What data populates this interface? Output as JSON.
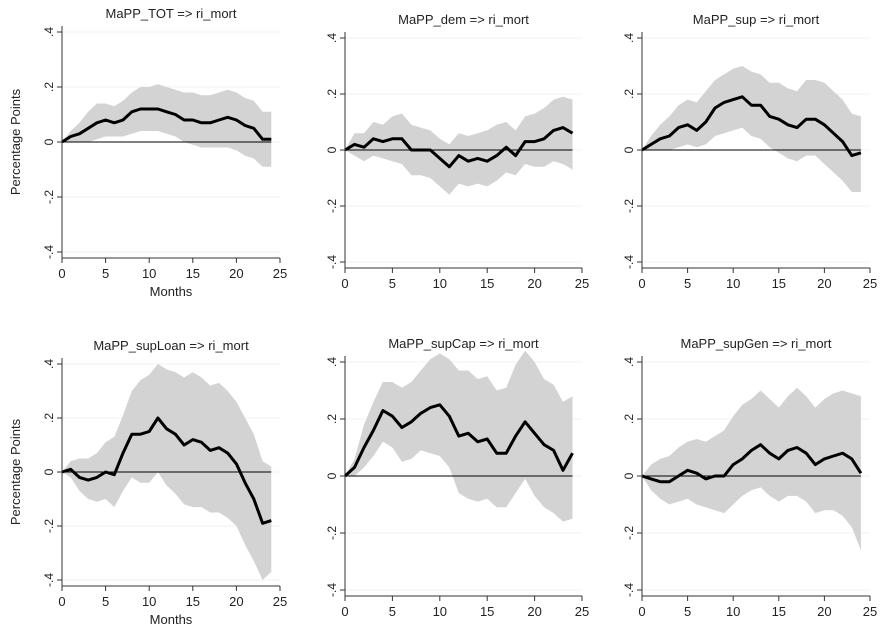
{
  "colors": {
    "line": "#000000",
    "band": "#d3d3d3",
    "zero": "#000000",
    "grid": "#eef0f5"
  },
  "chart_data": [
    {
      "type": "area",
      "title": "MaPP_TOT => ri_mort",
      "xlabel": "Months",
      "ylabel": "Percentage Points",
      "xlim": [
        0,
        25
      ],
      "ylim": [
        -0.4,
        0.4
      ],
      "xticks": [
        "0",
        "5",
        "10",
        "15",
        "20",
        "25"
      ],
      "yticks": [
        "-.4",
        "-.2",
        "0",
        ".2",
        ".4"
      ],
      "x": [
        0,
        1,
        2,
        3,
        4,
        5,
        6,
        7,
        8,
        9,
        10,
        11,
        12,
        13,
        14,
        15,
        16,
        17,
        18,
        19,
        20,
        21,
        22,
        23,
        24
      ],
      "series": [
        {
          "values": [
            0.0,
            0.02,
            0.03,
            0.05,
            0.07,
            0.08,
            0.07,
            0.08,
            0.11,
            0.12,
            0.12,
            0.12,
            0.11,
            0.1,
            0.08,
            0.08,
            0.07,
            0.07,
            0.08,
            0.09,
            0.08,
            0.06,
            0.05,
            0.01,
            0.01
          ]
        },
        {
          "values": [
            0.0,
            0.04,
            0.07,
            0.11,
            0.14,
            0.14,
            0.13,
            0.15,
            0.18,
            0.2,
            0.2,
            0.21,
            0.2,
            0.19,
            0.18,
            0.18,
            0.17,
            0.17,
            0.18,
            0.19,
            0.18,
            0.16,
            0.15,
            0.11,
            0.11
          ]
        },
        {
          "values": [
            0.0,
            0.0,
            0.0,
            0.0,
            0.01,
            0.02,
            0.02,
            0.02,
            0.03,
            0.04,
            0.04,
            0.04,
            0.03,
            0.02,
            0.0,
            -0.01,
            -0.02,
            -0.02,
            -0.02,
            -0.02,
            -0.03,
            -0.05,
            -0.06,
            -0.09,
            -0.09
          ]
        }
      ]
    },
    {
      "type": "area",
      "title": "MaPP_dem => ri_mort",
      "xlabel": "",
      "ylabel": "",
      "xlim": [
        0,
        25
      ],
      "ylim": [
        -0.4,
        0.4
      ],
      "xticks": [
        "0",
        "5",
        "10",
        "15",
        "20",
        "25"
      ],
      "yticks": [
        "-.4",
        "-.2",
        "0",
        ".2",
        ".4"
      ],
      "x": [
        0,
        1,
        2,
        3,
        4,
        5,
        6,
        7,
        8,
        9,
        10,
        11,
        12,
        13,
        14,
        15,
        16,
        17,
        18,
        19,
        20,
        21,
        22,
        23,
        24
      ],
      "series": [
        {
          "values": [
            0.0,
            0.02,
            0.01,
            0.04,
            0.03,
            0.04,
            0.04,
            0.0,
            0.0,
            0.0,
            -0.03,
            -0.06,
            -0.02,
            -0.04,
            -0.03,
            -0.04,
            -0.02,
            0.01,
            -0.02,
            0.03,
            0.03,
            0.04,
            0.07,
            0.08,
            0.06
          ]
        },
        {
          "values": [
            0.0,
            0.06,
            0.06,
            0.1,
            0.09,
            0.12,
            0.13,
            0.09,
            0.08,
            0.07,
            0.04,
            0.02,
            0.06,
            0.05,
            0.06,
            0.07,
            0.09,
            0.1,
            0.07,
            0.12,
            0.13,
            0.15,
            0.18,
            0.19,
            0.18
          ]
        },
        {
          "values": [
            0.0,
            -0.02,
            -0.04,
            -0.02,
            -0.03,
            -0.04,
            -0.05,
            -0.09,
            -0.09,
            -0.1,
            -0.13,
            -0.16,
            -0.12,
            -0.13,
            -0.12,
            -0.13,
            -0.11,
            -0.08,
            -0.09,
            -0.05,
            -0.06,
            -0.06,
            -0.04,
            -0.05,
            -0.07
          ]
        }
      ]
    },
    {
      "type": "area",
      "title": "MaPP_sup => ri_mort",
      "xlabel": "",
      "ylabel": "",
      "xlim": [
        0,
        25
      ],
      "ylim": [
        -0.4,
        0.4
      ],
      "xticks": [
        "0",
        "5",
        "10",
        "15",
        "20",
        "25"
      ],
      "yticks": [
        "-.4",
        "-.2",
        "0",
        ".2",
        ".4"
      ],
      "x": [
        0,
        1,
        2,
        3,
        4,
        5,
        6,
        7,
        8,
        9,
        10,
        11,
        12,
        13,
        14,
        15,
        16,
        17,
        18,
        19,
        20,
        21,
        22,
        23,
        24
      ],
      "series": [
        {
          "values": [
            0.0,
            0.02,
            0.04,
            0.05,
            0.08,
            0.09,
            0.07,
            0.1,
            0.15,
            0.17,
            0.18,
            0.19,
            0.16,
            0.16,
            0.12,
            0.11,
            0.09,
            0.08,
            0.11,
            0.11,
            0.09,
            0.06,
            0.03,
            -0.02,
            -0.01
          ]
        },
        {
          "values": [
            0.0,
            0.05,
            0.09,
            0.12,
            0.16,
            0.18,
            0.17,
            0.21,
            0.25,
            0.27,
            0.29,
            0.3,
            0.28,
            0.27,
            0.24,
            0.24,
            0.22,
            0.21,
            0.25,
            0.25,
            0.24,
            0.21,
            0.18,
            0.13,
            0.12
          ]
        },
        {
          "values": [
            0.0,
            0.0,
            0.0,
            0.0,
            0.01,
            0.02,
            0.01,
            0.02,
            0.05,
            0.06,
            0.07,
            0.08,
            0.05,
            0.04,
            0.01,
            -0.01,
            -0.03,
            -0.04,
            -0.02,
            -0.02,
            -0.05,
            -0.08,
            -0.11,
            -0.15,
            -0.15
          ]
        }
      ]
    },
    {
      "type": "area",
      "title": "MaPP_supLoan => ri_mort",
      "xlabel": "Months",
      "ylabel": "Percentage Points",
      "xlim": [
        0,
        25
      ],
      "ylim": [
        -0.4,
        0.4
      ],
      "xticks": [
        "0",
        "5",
        "10",
        "15",
        "20",
        "25"
      ],
      "yticks": [
        "-.4",
        "-.2",
        "0",
        ".2",
        ".4"
      ],
      "x": [
        0,
        1,
        2,
        3,
        4,
        5,
        6,
        7,
        8,
        9,
        10,
        11,
        12,
        13,
        14,
        15,
        16,
        17,
        18,
        19,
        20,
        21,
        22,
        23,
        24
      ],
      "series": [
        {
          "values": [
            0.0,
            0.01,
            -0.02,
            -0.03,
            -0.02,
            0.0,
            -0.01,
            0.07,
            0.14,
            0.14,
            0.15,
            0.2,
            0.16,
            0.14,
            0.1,
            0.12,
            0.11,
            0.08,
            0.09,
            0.07,
            0.03,
            -0.04,
            -0.1,
            -0.19,
            -0.18
          ]
        },
        {
          "values": [
            0.0,
            0.04,
            0.05,
            0.05,
            0.07,
            0.11,
            0.13,
            0.21,
            0.3,
            0.34,
            0.36,
            0.4,
            0.38,
            0.37,
            0.35,
            0.37,
            0.35,
            0.32,
            0.33,
            0.3,
            0.26,
            0.2,
            0.14,
            0.04,
            0.02
          ]
        },
        {
          "values": [
            0.0,
            -0.02,
            -0.07,
            -0.1,
            -0.11,
            -0.1,
            -0.13,
            -0.07,
            -0.02,
            -0.04,
            -0.04,
            0.0,
            -0.05,
            -0.08,
            -0.12,
            -0.13,
            -0.13,
            -0.15,
            -0.15,
            -0.17,
            -0.2,
            -0.27,
            -0.33,
            -0.4,
            -0.37
          ]
        }
      ]
    },
    {
      "type": "area",
      "title": "MaPP_supCap => ri_mort",
      "xlabel": "",
      "ylabel": "",
      "xlim": [
        0,
        25
      ],
      "ylim": [
        -0.4,
        0.4
      ],
      "xticks": [
        "0",
        "5",
        "10",
        "15",
        "20",
        "25"
      ],
      "yticks": [
        "-.4",
        "-.2",
        "0",
        ".2",
        ".4"
      ],
      "x": [
        0,
        1,
        2,
        3,
        4,
        5,
        6,
        7,
        8,
        9,
        10,
        11,
        12,
        13,
        14,
        15,
        16,
        17,
        18,
        19,
        20,
        21,
        22,
        23,
        24
      ],
      "series": [
        {
          "values": [
            0.0,
            0.03,
            0.1,
            0.16,
            0.23,
            0.21,
            0.17,
            0.19,
            0.22,
            0.24,
            0.25,
            0.21,
            0.14,
            0.15,
            0.12,
            0.13,
            0.08,
            0.08,
            0.14,
            0.19,
            0.15,
            0.11,
            0.09,
            0.02,
            0.08
          ]
        },
        {
          "values": [
            0.0,
            0.06,
            0.18,
            0.26,
            0.33,
            0.33,
            0.31,
            0.33,
            0.37,
            0.41,
            0.43,
            0.41,
            0.37,
            0.37,
            0.34,
            0.35,
            0.3,
            0.31,
            0.39,
            0.44,
            0.4,
            0.34,
            0.32,
            0.26,
            0.28
          ]
        },
        {
          "values": [
            0.0,
            0.0,
            0.03,
            0.07,
            0.12,
            0.1,
            0.05,
            0.06,
            0.09,
            0.08,
            0.07,
            0.03,
            -0.06,
            -0.08,
            -0.09,
            -0.08,
            -0.11,
            -0.11,
            -0.06,
            -0.01,
            -0.07,
            -0.11,
            -0.13,
            -0.16,
            -0.15
          ]
        }
      ]
    },
    {
      "type": "area",
      "title": "MaPP_supGen => ri_mort",
      "xlabel": "",
      "ylabel": "",
      "xlim": [
        0,
        25
      ],
      "ylim": [
        -0.4,
        0.4
      ],
      "xticks": [
        "0",
        "5",
        "10",
        "15",
        "20",
        "25"
      ],
      "yticks": [
        "-.4",
        "-.2",
        "0",
        ".2",
        ".4"
      ],
      "x": [
        0,
        1,
        2,
        3,
        4,
        5,
        6,
        7,
        8,
        9,
        10,
        11,
        12,
        13,
        14,
        15,
        16,
        17,
        18,
        19,
        20,
        21,
        22,
        23,
        24
      ],
      "series": [
        {
          "values": [
            0.0,
            -0.01,
            -0.02,
            -0.02,
            0.0,
            0.02,
            0.01,
            -0.01,
            0.0,
            0.0,
            0.04,
            0.06,
            0.09,
            0.11,
            0.08,
            0.06,
            0.09,
            0.1,
            0.08,
            0.04,
            0.06,
            0.07,
            0.08,
            0.06,
            0.01
          ]
        },
        {
          "values": [
            0.0,
            0.04,
            0.06,
            0.07,
            0.1,
            0.12,
            0.13,
            0.12,
            0.14,
            0.16,
            0.21,
            0.25,
            0.27,
            0.3,
            0.27,
            0.24,
            0.28,
            0.31,
            0.28,
            0.24,
            0.27,
            0.29,
            0.3,
            0.29,
            0.28
          ]
        },
        {
          "values": [
            0.0,
            -0.05,
            -0.08,
            -0.1,
            -0.09,
            -0.08,
            -0.1,
            -0.11,
            -0.12,
            -0.13,
            -0.1,
            -0.07,
            -0.05,
            -0.04,
            -0.07,
            -0.09,
            -0.07,
            -0.07,
            -0.09,
            -0.13,
            -0.12,
            -0.12,
            -0.14,
            -0.18,
            -0.26
          ]
        }
      ]
    }
  ]
}
